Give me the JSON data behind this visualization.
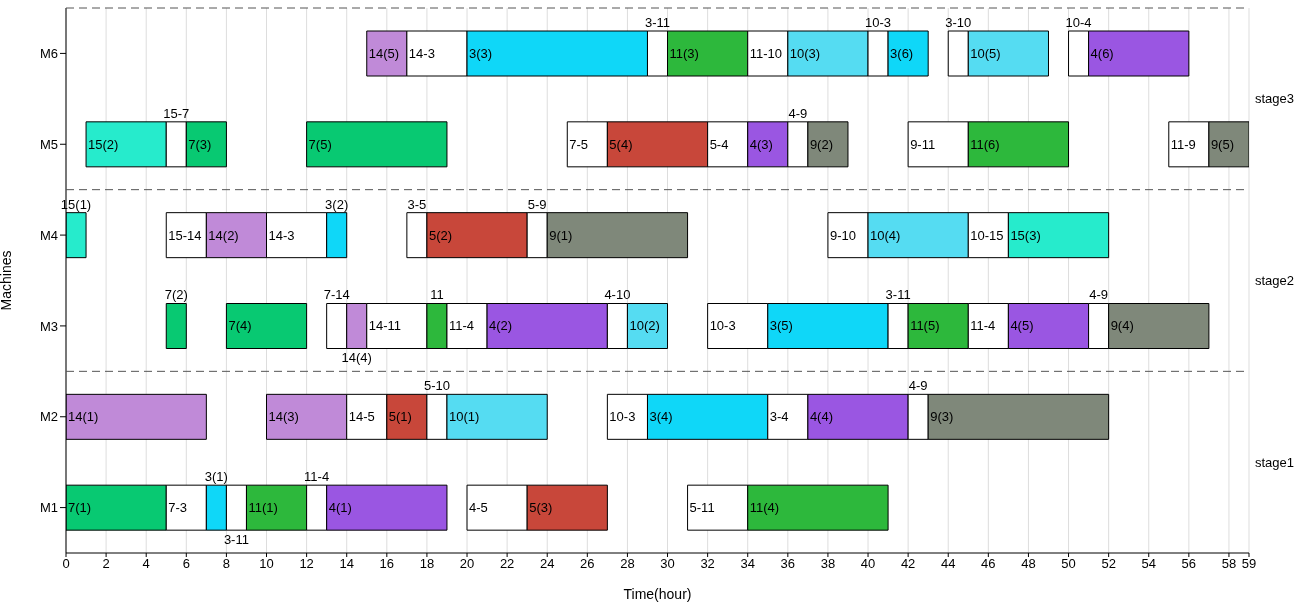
{
  "chart_data": {
    "type": "bar",
    "orientation": "horizontal",
    "xlabel": "Time(hour)",
    "ylabel": "Machines",
    "categories": [
      "M6",
      "M5",
      "M4",
      "M3",
      "M2",
      "M1"
    ],
    "xlim": [
      0,
      59
    ],
    "xticks": [
      0,
      2,
      4,
      6,
      8,
      10,
      12,
      14,
      16,
      18,
      20,
      22,
      24,
      26,
      28,
      30,
      32,
      34,
      36,
      38,
      40,
      42,
      44,
      46,
      48,
      50,
      52,
      54,
      56,
      58,
      59
    ],
    "grid": "x",
    "series": [
      {
        "base": [
          15,
          1,
          0,
          5,
          0,
          0
        ],
        "values": [
          2,
          4,
          1,
          1,
          7,
          5
        ],
        "colors": [
          "#c08ad8",
          "#26ebcc",
          "#26ebcc",
          "#08c972",
          "#c08ad8",
          "#08c972"
        ]
      },
      {
        "base": [
          17,
          5,
          5,
          8,
          10,
          5
        ],
        "values": [
          3,
          1,
          2,
          4,
          4,
          2
        ],
        "colors": [
          "#ffffff",
          "#ffffff",
          "#ffffff",
          "#08c972",
          "#c08ad8",
          "#ffffff"
        ]
      },
      {
        "base": [
          20,
          6,
          7,
          13,
          14,
          7
        ],
        "values": [
          9,
          2,
          3,
          1,
          2,
          1
        ],
        "colors": [
          "#0fd7f8",
          "#08c972",
          "#c08ad8",
          "#ffffff",
          "#ffffff",
          "#0fd7f8"
        ]
      },
      {
        "base": [
          29,
          12,
          10,
          14,
          16,
          8
        ],
        "values": [
          1,
          7,
          3,
          1,
          2,
          1
        ],
        "colors": [
          "#ffffff",
          "#08c972",
          "#ffffff",
          "#c08ad8",
          "#c8473a",
          "#ffffff"
        ]
      },
      {
        "base": [
          30,
          25,
          13,
          15,
          18,
          9
        ],
        "values": [
          4,
          2,
          1,
          3,
          1,
          3
        ],
        "colors": [
          "#2db83c",
          "#ffffff",
          "#0fd7f8",
          "#ffffff",
          "#ffffff",
          "#2db83c"
        ]
      },
      {
        "base": [
          34,
          27,
          17,
          18,
          19,
          12
        ],
        "values": [
          2,
          5,
          1,
          1,
          5,
          1
        ],
        "colors": [
          "#ffffff",
          "#c8473a",
          "#ffffff",
          "#2db83c",
          "#55dcf2",
          "#ffffff"
        ]
      },
      {
        "base": [
          36,
          32,
          18,
          19,
          27,
          13
        ],
        "values": [
          4,
          2,
          5,
          2,
          2,
          6
        ],
        "colors": [
          "#55dcf2",
          "#ffffff",
          "#c8473a",
          "#ffffff",
          "#ffffff",
          "#9a56e2"
        ]
      },
      {
        "base": [
          40,
          34,
          23,
          21,
          29,
          20
        ],
        "values": [
          1,
          2,
          1,
          6,
          6,
          3
        ],
        "colors": [
          "#ffffff",
          "#9a56e2",
          "#ffffff",
          "#9a56e2",
          "#0fd7f8",
          "#ffffff"
        ]
      },
      {
        "base": [
          41,
          36,
          24,
          27,
          35,
          23
        ],
        "values": [
          2,
          1,
          7,
          1,
          2,
          4
        ],
        "colors": [
          "#0fd7f8",
          "#ffffff",
          "#7f887a",
          "#ffffff",
          "#ffffff",
          "#c8473a"
        ]
      },
      {
        "base": [
          44,
          37,
          38,
          28,
          37,
          31
        ],
        "values": [
          1,
          2,
          2,
          2,
          5,
          3
        ],
        "colors": [
          "#ffffff",
          "#7f887a",
          "#ffffff",
          "#55dcf2",
          "#9a56e2",
          "#ffffff"
        ]
      },
      {
        "base": [
          45,
          42,
          40,
          32,
          42,
          34
        ],
        "values": [
          4,
          3,
          5,
          3,
          1,
          7
        ],
        "colors": [
          "#55dcf2",
          "#ffffff",
          "#55dcf2",
          "#ffffff",
          "#ffffff",
          "#2db83c"
        ]
      },
      {
        "base": [
          50,
          45,
          45,
          35,
          43,
          null
        ],
        "values": [
          1,
          5,
          2,
          6,
          9,
          null
        ],
        "colors": [
          "#ffffff",
          "#2db83c",
          "#ffffff",
          "#0fd7f8",
          "#7f887a",
          null
        ]
      },
      {
        "base": [
          51,
          55,
          47,
          41,
          null,
          null
        ],
        "values": [
          5,
          2,
          5,
          1,
          null,
          null
        ],
        "colors": [
          "#9a56e2",
          "#ffffff",
          "#26ebcc",
          "#ffffff",
          null,
          null
        ]
      },
      {
        "base": [
          null,
          57,
          null,
          42,
          null,
          null
        ],
        "values": [
          null,
          2,
          null,
          3,
          null,
          null
        ],
        "colors": [
          null,
          "#7f887a",
          null,
          "#2db83c",
          null,
          null
        ]
      },
      {
        "base": [
          null,
          null,
          null,
          45,
          null,
          null
        ],
        "values": [
          null,
          null,
          null,
          2,
          null,
          null
        ],
        "colors": [
          null,
          null,
          null,
          "#ffffff",
          null,
          null
        ]
      },
      {
        "base": [
          null,
          null,
          null,
          47,
          null,
          null
        ],
        "values": [
          null,
          null,
          null,
          4,
          null,
          null
        ],
        "colors": [
          null,
          null,
          null,
          "#9a56e2",
          null,
          null
        ]
      },
      {
        "base": [
          null,
          null,
          null,
          51,
          null,
          null
        ],
        "values": [
          null,
          null,
          null,
          1,
          null,
          null
        ],
        "colors": [
          null,
          null,
          null,
          "#ffffff",
          null,
          null
        ]
      },
      {
        "base": [
          null,
          null,
          null,
          52,
          null,
          null
        ],
        "values": [
          null,
          null,
          null,
          5,
          null,
          null
        ],
        "colors": [
          null,
          null,
          null,
          "#7f887a",
          null,
          null
        ]
      }
    ],
    "annotations": [
      "stage3",
      "stage2",
      "stage1",
      {
        "text": "14(5)",
        "x": 15,
        "y": "M6"
      },
      {
        "text": "14-3",
        "x": 17,
        "y": "M6"
      },
      {
        "text": "3(3)",
        "x": 20,
        "y": "M6"
      },
      {
        "text": "3-11",
        "x": 29,
        "y": "M6"
      },
      {
        "text": "11(3)",
        "x": 30,
        "y": "M6"
      },
      {
        "text": "11-10",
        "x": 34,
        "y": "M6"
      },
      {
        "text": "10(3)",
        "x": 36,
        "y": "M6"
      },
      {
        "text": "10-3",
        "x": 40,
        "y": "M6"
      },
      {
        "text": "3(6)",
        "x": 41,
        "y": "M6"
      },
      {
        "text": "3-10",
        "x": 44,
        "y": "M6"
      },
      {
        "text": "10(5)",
        "x": 45,
        "y": "M6"
      },
      {
        "text": "10-4",
        "x": 50,
        "y": "M6"
      },
      {
        "text": "4(6)",
        "x": 51,
        "y": "M6"
      },
      {
        "text": "15(2)",
        "x": 1,
        "y": "M5"
      },
      {
        "text": "15-7",
        "x": 5,
        "y": "M5"
      },
      {
        "text": "7(3)",
        "x": 6,
        "y": "M5"
      },
      {
        "text": "7(5)",
        "x": 12,
        "y": "M5"
      },
      {
        "text": "7-5",
        "x": 25,
        "y": "M5"
      },
      {
        "text": "5(4)",
        "x": 27,
        "y": "M5"
      },
      {
        "text": "5-4",
        "x": 32,
        "y": "M5"
      },
      {
        "text": "4(3)",
        "x": 34,
        "y": "M5"
      },
      {
        "text": "4-9",
        "x": 36,
        "y": "M5"
      },
      {
        "text": "9(2)",
        "x": 37,
        "y": "M5"
      },
      {
        "text": "9-11",
        "x": 42,
        "y": "M5"
      },
      {
        "text": "11(6)",
        "x": 45,
        "y": "M5"
      },
      {
        "text": "11-9",
        "x": 55,
        "y": "M5"
      },
      {
        "text": "9(5)",
        "x": 57,
        "y": "M5"
      },
      {
        "text": "15(1)",
        "x": 0,
        "y": "M4"
      },
      {
        "text": "15-14",
        "x": 5,
        "y": "M4"
      },
      {
        "text": "14(2)",
        "x": 7,
        "y": "M4"
      },
      {
        "text": "14-3",
        "x": 10,
        "y": "M4"
      },
      {
        "text": "3(2)",
        "x": 13,
        "y": "M4"
      },
      {
        "text": "3-5",
        "x": 17,
        "y": "M4"
      },
      {
        "text": "5(2)",
        "x": 18,
        "y": "M4"
      },
      {
        "text": "5-9",
        "x": 23,
        "y": "M4"
      },
      {
        "text": "9(1)",
        "x": 24,
        "y": "M4"
      },
      {
        "text": "9-10",
        "x": 38,
        "y": "M4"
      },
      {
        "text": "10(4)",
        "x": 40,
        "y": "M4"
      },
      {
        "text": "10-15",
        "x": 45,
        "y": "M4"
      },
      {
        "text": "15(3)",
        "x": 47,
        "y": "M4"
      },
      {
        "text": "7(2)",
        "x": 5,
        "y": "M3"
      },
      {
        "text": "7(4)",
        "x": 8,
        "y": "M3"
      },
      {
        "text": "7-14",
        "x": 13,
        "y": "M3"
      },
      {
        "text": "14(4)",
        "x": 14,
        "y": "M3"
      },
      {
        "text": "14-11",
        "x": 15,
        "y": "M3"
      },
      {
        "text": "11",
        "x": 18,
        "y": "M3"
      },
      {
        "text": "11-4",
        "x": 19,
        "y": "M3"
      },
      {
        "text": "4(2)",
        "x": 21,
        "y": "M3"
      },
      {
        "text": "4-10",
        "x": 27,
        "y": "M3"
      },
      {
        "text": "10(2)",
        "x": 28,
        "y": "M3"
      },
      {
        "text": "10-3",
        "x": 32,
        "y": "M3"
      },
      {
        "text": "3(5)",
        "x": 35,
        "y": "M3"
      },
      {
        "text": "3-11",
        "x": 41,
        "y": "M3"
      },
      {
        "text": "11(5)",
        "x": 42,
        "y": "M3"
      },
      {
        "text": "11-4",
        "x": 45,
        "y": "M3"
      },
      {
        "text": "4(5)",
        "x": 47,
        "y": "M3"
      },
      {
        "text": "4-9",
        "x": 51,
        "y": "M3"
      },
      {
        "text": "9(4)",
        "x": 52,
        "y": "M3"
      },
      {
        "text": "14(1)",
        "x": 0,
        "y": "M2"
      },
      {
        "text": "14(3)",
        "x": 10,
        "y": "M2"
      },
      {
        "text": "14-5",
        "x": 14,
        "y": "M2"
      },
      {
        "text": "5(1)",
        "x": 16,
        "y": "M2"
      },
      {
        "text": "5-10",
        "x": 18,
        "y": "M2"
      },
      {
        "text": "10(1)",
        "x": 19,
        "y": "M2"
      },
      {
        "text": "10-3",
        "x": 27,
        "y": "M2"
      },
      {
        "text": "3(4)",
        "x": 29,
        "y": "M2"
      },
      {
        "text": "3-4",
        "x": 35,
        "y": "M2"
      },
      {
        "text": "4(4)",
        "x": 37,
        "y": "M2"
      },
      {
        "text": "4-9",
        "x": 42,
        "y": "M2"
      },
      {
        "text": "9(3)",
        "x": 43,
        "y": "M2"
      },
      {
        "text": "7(1)",
        "x": 0,
        "y": "M1"
      },
      {
        "text": "7-3",
        "x": 5,
        "y": "M1"
      },
      {
        "text": "3(1)",
        "x": 7,
        "y": "M1"
      },
      {
        "text": "3-11",
        "x": 8,
        "y": "M1"
      },
      {
        "text": "11(1)",
        "x": 9,
        "y": "M1"
      },
      {
        "text": "11-4",
        "x": 12,
        "y": "M1"
      },
      {
        "text": "4(1)",
        "x": 13,
        "y": "M1"
      },
      {
        "text": "4-5",
        "x": 20,
        "y": "M1"
      },
      {
        "text": "5(3)",
        "x": 23,
        "y": "M1"
      },
      {
        "text": "5-11",
        "x": 31,
        "y": "M1"
      },
      {
        "text": "11(4)",
        "x": 34,
        "y": "M1"
      }
    ]
  }
}
